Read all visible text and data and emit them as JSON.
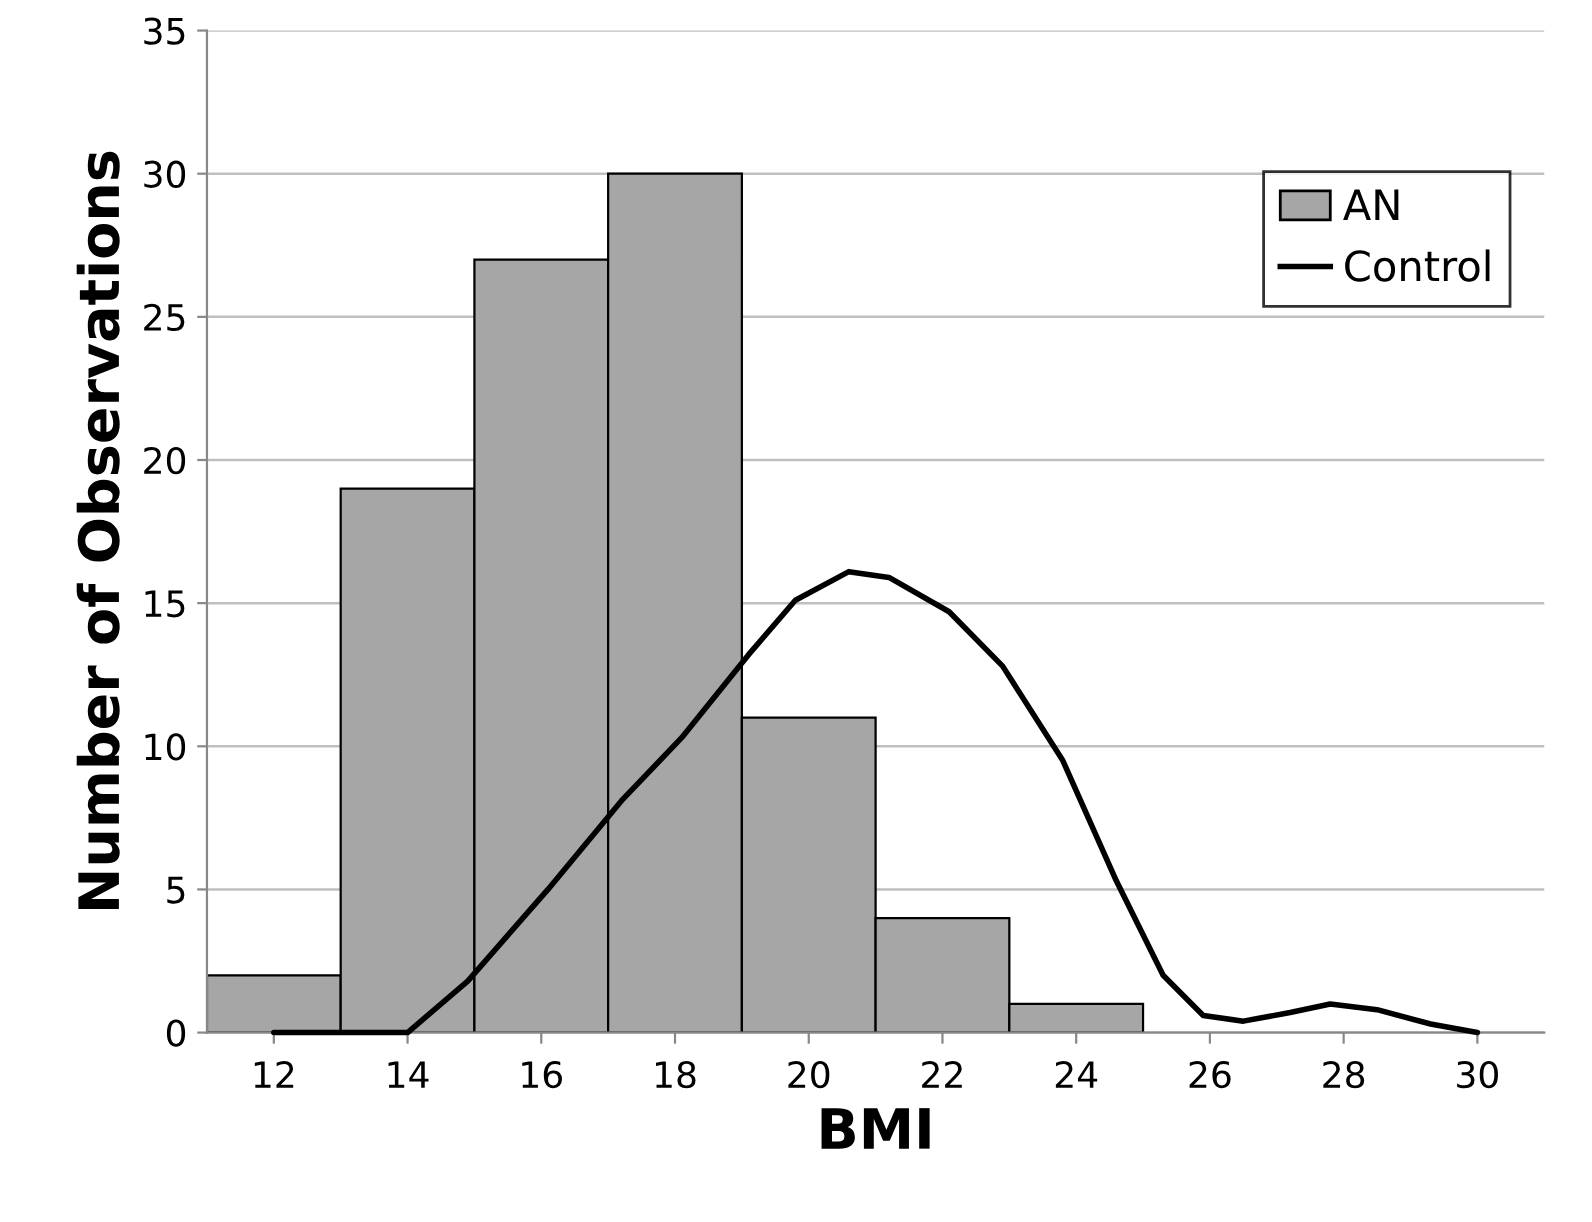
{
  "chart_data": {
    "type": "bar",
    "xlabel": "BMI",
    "ylabel": "Number of Observations",
    "x": [
      12,
      14,
      16,
      18,
      20,
      22,
      24,
      26,
      28,
      30
    ],
    "series": [
      {
        "name": "AN",
        "color": "#a6a6a6",
        "values": [
          2,
          19,
          27,
          30,
          11,
          4,
          1,
          0,
          0,
          0
        ]
      },
      {
        "name": "Control",
        "type": "line",
        "color": "#000000",
        "x": [
          12,
          13,
          14,
          14.9,
          16.1,
          17.2,
          18.1,
          19.1,
          19.8,
          20.6,
          21.2,
          22.1,
          22.9,
          23.8,
          24.6,
          25.3,
          25.9,
          26.5,
          27.2,
          27.8,
          28.5,
          29.3,
          30
        ],
        "values": [
          0,
          0,
          0,
          1.8,
          5.0,
          8.1,
          10.3,
          13.2,
          15.1,
          16.1,
          15.9,
          14.7,
          12.8,
          9.5,
          5.3,
          2.0,
          0.6,
          0.4,
          0.7,
          1.0,
          0.8,
          0.3,
          0
        ]
      }
    ],
    "xlim": [
      11,
      31
    ],
    "xticks": [
      12,
      14,
      16,
      18,
      20,
      22,
      24,
      26,
      28,
      30
    ],
    "ylim": [
      0,
      35
    ],
    "yticks": [
      0,
      5,
      10,
      15,
      20,
      25,
      30,
      35
    ],
    "grid": "y",
    "legend": "top right"
  }
}
